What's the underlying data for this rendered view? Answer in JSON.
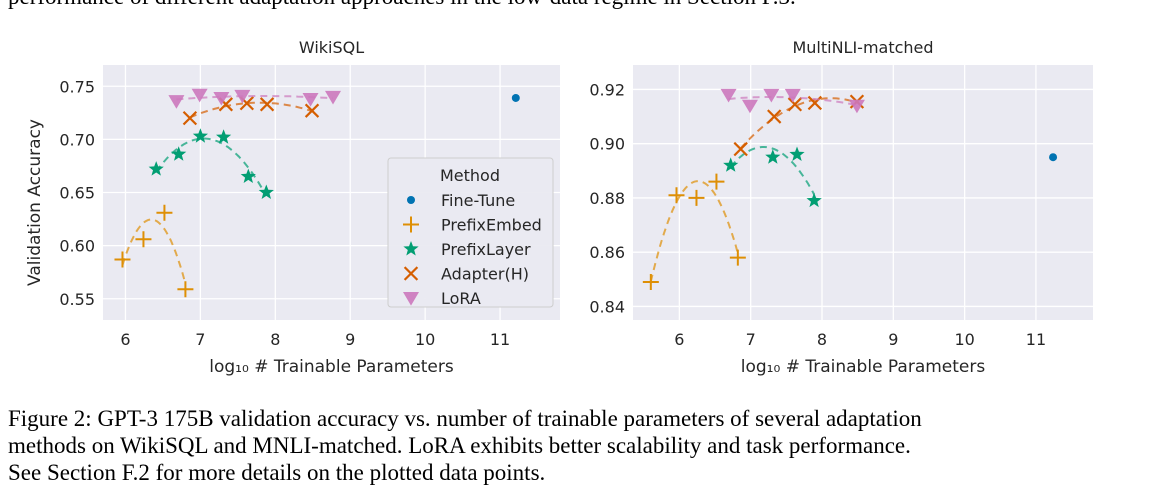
{
  "top_text": "performance of different adaptation approaches in the low-data regime in Section F.3.",
  "caption": [
    "Figure 2: GPT-3 175B validation accuracy vs. number of trainable parameters of several adaptation",
    "methods on WikiSQL and MNLI-matched. LoRA exhibits better scalability and task performance.",
    "See Section F.2 for more details on the plotted data points."
  ],
  "colors": {
    "Fine-Tune": "#0173b2",
    "PrefixEmbed": "#de8f05",
    "PrefixLayer": "#029e73",
    "Adapter(H)": "#d55e00",
    "LoRA": "#cc78bc",
    "background": "#eaeaf2"
  },
  "legend": {
    "title": "Method",
    "placement": "center-right of first chart",
    "entries": [
      {
        "name": "Fine-Tune",
        "marker": "circle"
      },
      {
        "name": "PrefixEmbed",
        "marker": "plus"
      },
      {
        "name": "PrefixLayer",
        "marker": "star"
      },
      {
        "name": "Adapter(H)",
        "marker": "x"
      },
      {
        "name": "LoRA",
        "marker": "triangle-down"
      }
    ]
  },
  "chart_data": [
    {
      "type": "scatter",
      "title": "WikiSQL",
      "xlabel": "log₁₀ # Trainable Parameters",
      "ylabel": "Validation Accuracy",
      "xlim": [
        5.7,
        11.8
      ],
      "ylim": [
        0.53,
        0.77
      ],
      "xticks": [
        "6",
        "7",
        "8",
        "9",
        "10",
        "11"
      ],
      "yticks": [
        "0.55",
        "0.60",
        "0.65",
        "0.70",
        "0.75"
      ],
      "grid": true,
      "fit": "dashed quadratic trend per method",
      "series": [
        {
          "name": "Fine-Tune",
          "x": [
            11.21
          ],
          "y": [
            0.739
          ]
        },
        {
          "name": "PrefixEmbed",
          "x": [
            5.96,
            6.24,
            6.52,
            6.8
          ],
          "y": [
            0.587,
            0.606,
            0.631,
            0.559
          ]
        },
        {
          "name": "PrefixLayer",
          "x": [
            6.41,
            6.71,
            7.0,
            7.31,
            7.64,
            7.88
          ],
          "y": [
            0.672,
            0.686,
            0.703,
            0.702,
            0.665,
            0.65
          ]
        },
        {
          "name": "Adapter(H)",
          "x": [
            6.86,
            7.34,
            7.62,
            7.89,
            8.49
          ],
          "y": [
            0.72,
            0.733,
            0.734,
            0.733,
            0.727
          ]
        },
        {
          "name": "LoRA",
          "x": [
            6.68,
            6.99,
            7.28,
            7.56,
            8.47,
            8.77
          ],
          "y": [
            0.736,
            0.742,
            0.739,
            0.741,
            0.738,
            0.74
          ]
        }
      ]
    },
    {
      "type": "scatter",
      "title": "MultiNLI-matched",
      "xlabel": "log₁₀ # Trainable Parameters",
      "ylabel": "",
      "xlim": [
        5.35,
        11.8
      ],
      "ylim": [
        0.835,
        0.929
      ],
      "xticks": [
        "6",
        "7",
        "8",
        "9",
        "10",
        "11"
      ],
      "yticks": [
        "0.84",
        "0.86",
        "0.88",
        "0.90",
        "0.92"
      ],
      "grid": true,
      "fit": "dashed quadratic trend per method",
      "series": [
        {
          "name": "Fine-Tune",
          "x": [
            11.24
          ],
          "y": [
            0.895
          ]
        },
        {
          "name": "PrefixEmbed",
          "x": [
            5.6,
            5.96,
            6.24,
            6.52,
            6.82
          ],
          "y": [
            0.849,
            0.881,
            0.88,
            0.886,
            0.858
          ]
        },
        {
          "name": "PrefixLayer",
          "x": [
            6.72,
            7.31,
            7.65,
            7.89
          ],
          "y": [
            0.892,
            0.895,
            0.896,
            0.879
          ]
        },
        {
          "name": "Adapter(H)",
          "x": [
            6.86,
            7.33,
            7.62,
            7.9,
            8.49
          ],
          "y": [
            0.898,
            0.91,
            0.9145,
            0.915,
            0.9155
          ]
        },
        {
          "name": "LoRA",
          "x": [
            6.69,
            6.99,
            7.29,
            7.59,
            8.49
          ],
          "y": [
            0.918,
            0.914,
            0.918,
            0.918,
            0.914
          ]
        }
      ]
    }
  ]
}
